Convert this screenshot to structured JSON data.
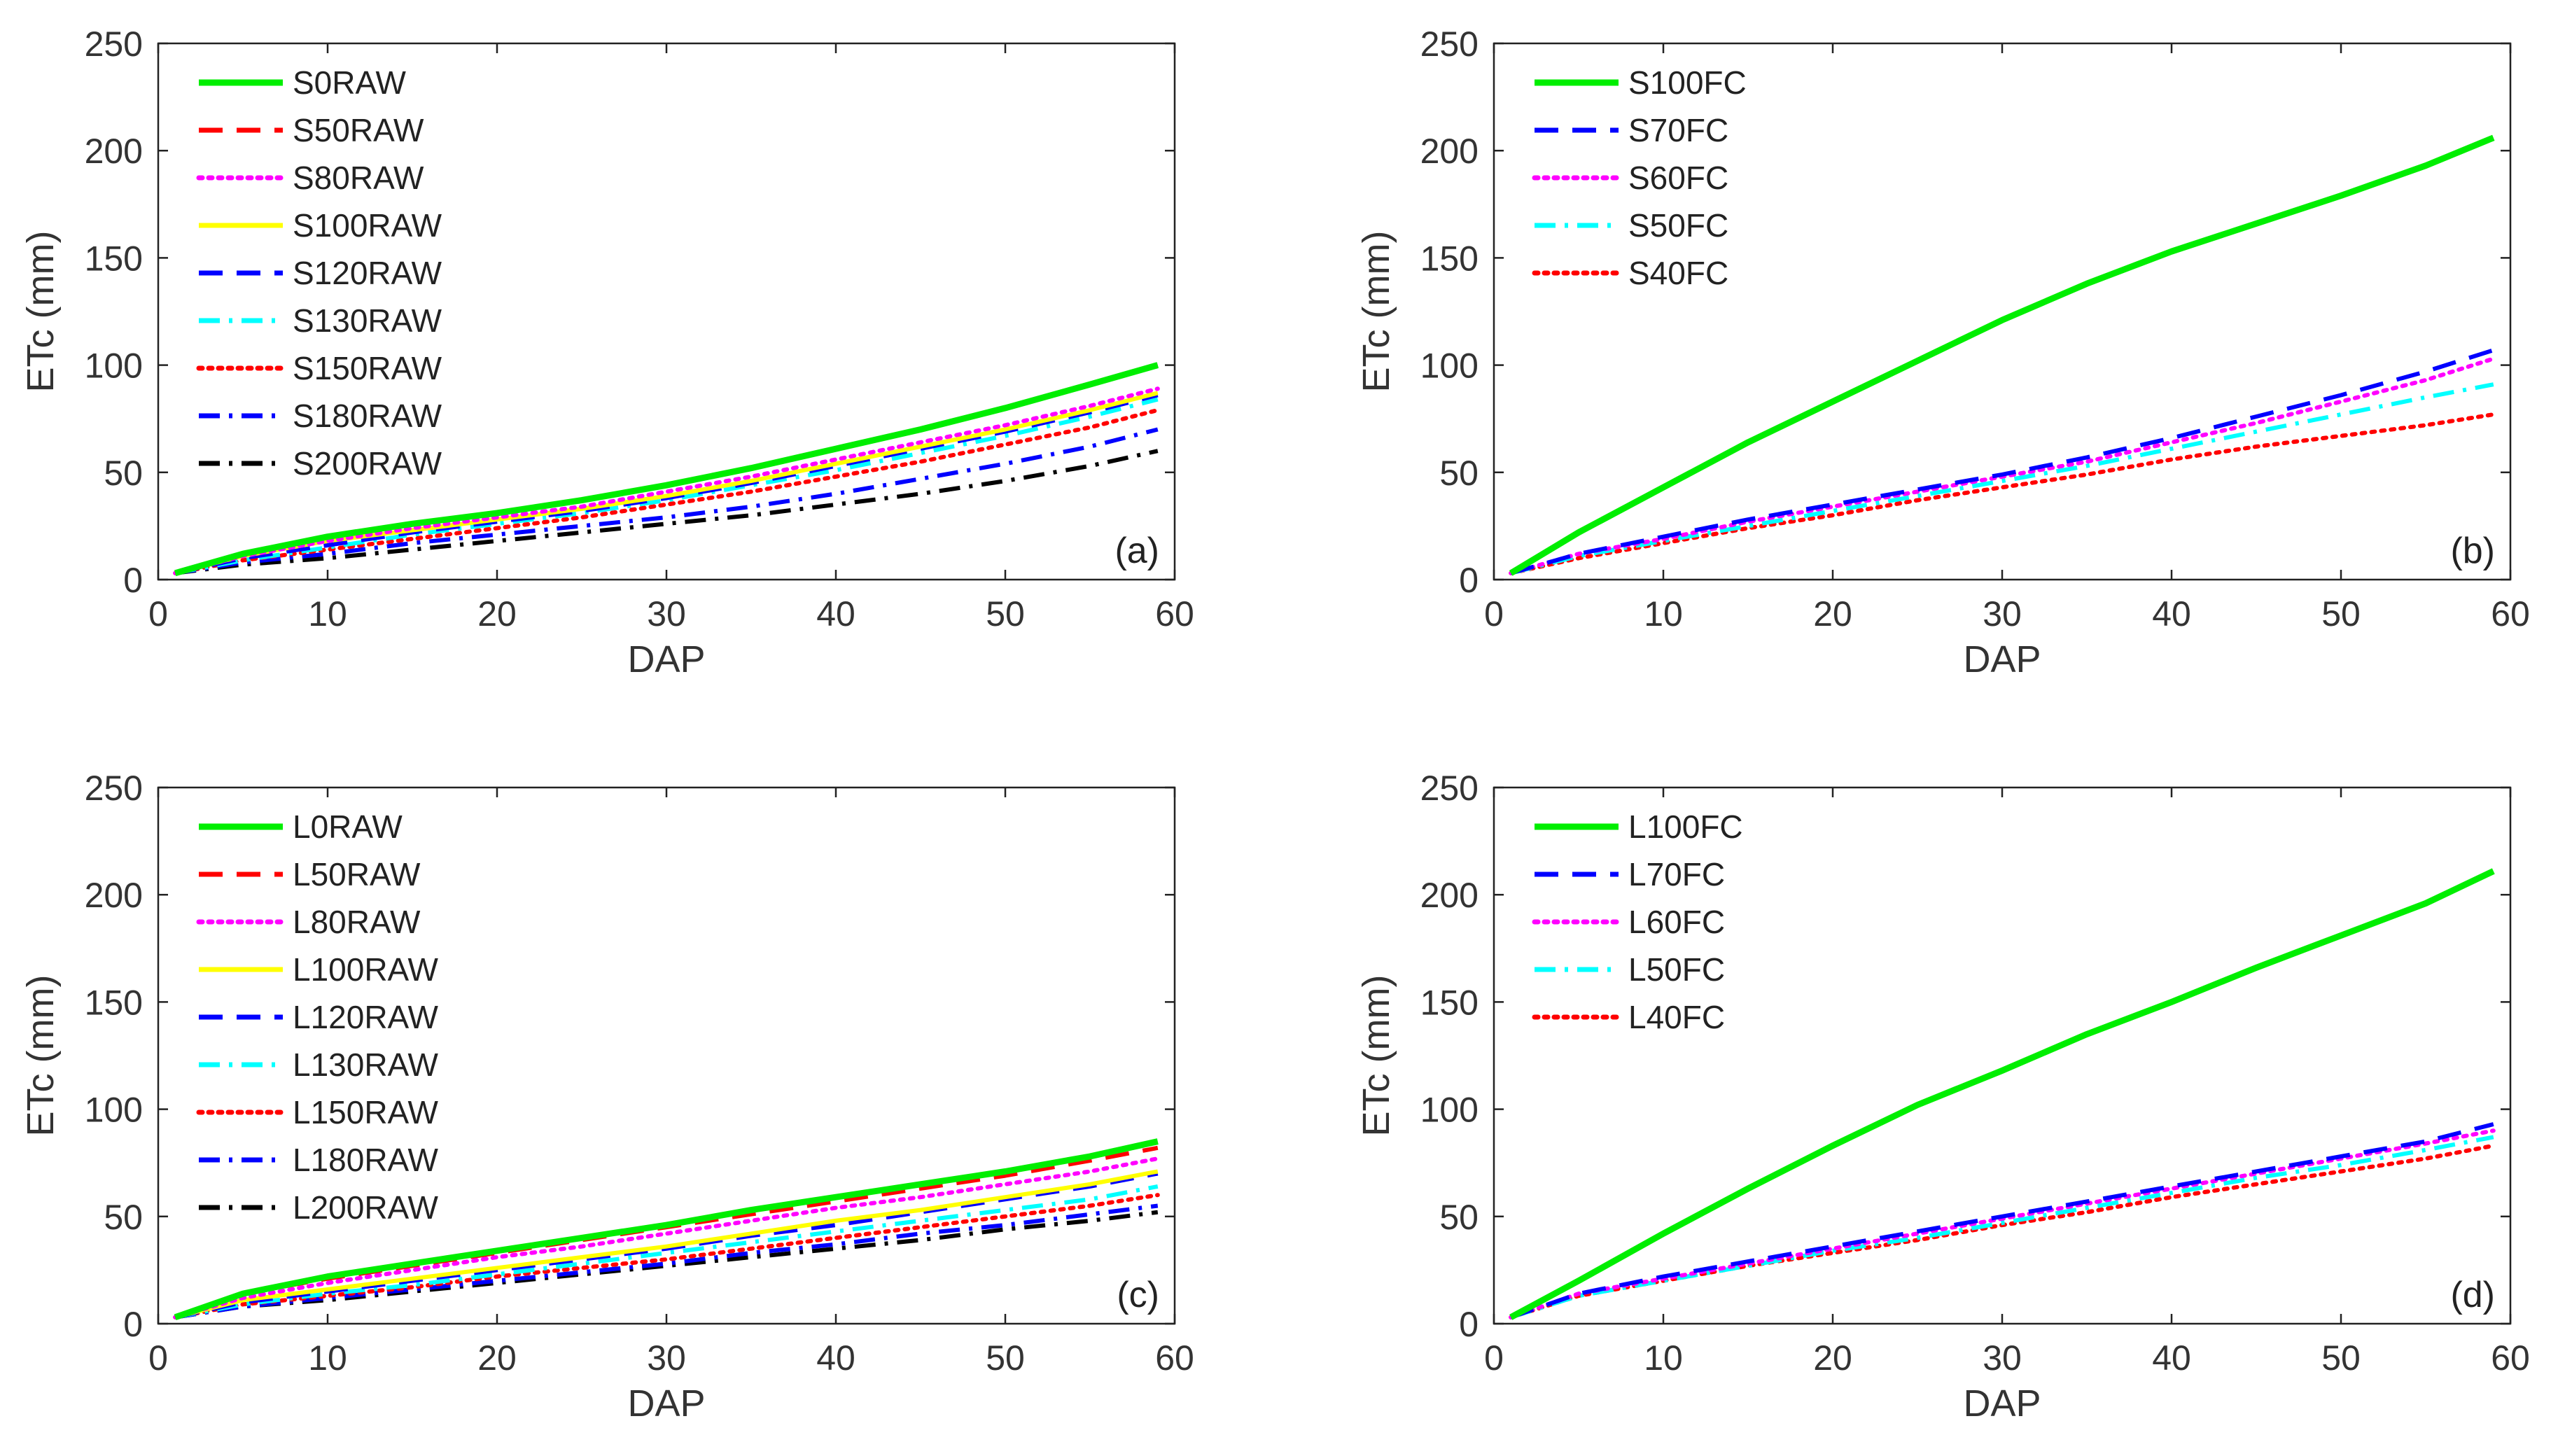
{
  "figure": {
    "panels": [
      "a",
      "b",
      "c",
      "d"
    ]
  },
  "chart_data": [
    {
      "id": "a",
      "type": "line",
      "panel_label": "(a)",
      "xlabel": "DAP",
      "ylabel": "ETc (mm)",
      "xlim": [
        0,
        60
      ],
      "ylim": [
        0,
        250
      ],
      "xticks": [
        "0",
        "10",
        "20",
        "30",
        "40",
        "50",
        "60"
      ],
      "yticks": [
        "0",
        "50",
        "100",
        "150",
        "200",
        "250"
      ],
      "legend_position": "top-left",
      "x": [
        1,
        5,
        10,
        15,
        20,
        25,
        30,
        35,
        40,
        45,
        50,
        55,
        59
      ],
      "series": [
        {
          "name": "S0RAW",
          "color": "#00ee00",
          "dash": "solid",
          "values": [
            3,
            12,
            20,
            26,
            31,
            37,
            44,
            52,
            61,
            70,
            80,
            91,
            100
          ]
        },
        {
          "name": "S50RAW",
          "color": "#ff0000",
          "dash": "dash",
          "values": [
            3,
            12,
            20,
            26,
            31,
            37,
            44,
            52,
            61,
            70,
            80,
            91,
            100
          ]
        },
        {
          "name": "S80RAW",
          "color": "#ff00ff",
          "dash": "dot",
          "values": [
            3,
            11,
            18,
            24,
            29,
            34,
            41,
            48,
            56,
            64,
            72,
            81,
            89
          ]
        },
        {
          "name": "S100RAW",
          "color": "#ffff00",
          "dash": "solid",
          "values": [
            3,
            11,
            18,
            23,
            28,
            33,
            39,
            46,
            54,
            62,
            70,
            79,
            87
          ]
        },
        {
          "name": "S120RAW",
          "color": "#0000ff",
          "dash": "dash",
          "values": [
            3,
            10,
            16,
            22,
            27,
            32,
            38,
            45,
            53,
            61,
            69,
            78,
            86
          ]
        },
        {
          "name": "S130RAW",
          "color": "#00ffff",
          "dash": "dashdot",
          "values": [
            3,
            9,
            15,
            21,
            26,
            31,
            37,
            44,
            51,
            59,
            67,
            76,
            84
          ]
        },
        {
          "name": "S150RAW",
          "color": "#ff0000",
          "dash": "dot",
          "values": [
            3,
            9,
            14,
            19,
            24,
            29,
            35,
            41,
            48,
            55,
            63,
            71,
            79
          ]
        },
        {
          "name": "S180RAW",
          "color": "#0000ff",
          "dash": "dashdot",
          "values": [
            3,
            8,
            12,
            17,
            21,
            25,
            29,
            34,
            40,
            47,
            54,
            62,
            70
          ]
        },
        {
          "name": "S200RAW",
          "color": "#000000",
          "dash": "dashdot",
          "values": [
            3,
            7,
            10,
            14,
            18,
            22,
            26,
            30,
            35,
            40,
            46,
            53,
            60
          ]
        }
      ]
    },
    {
      "id": "b",
      "type": "line",
      "panel_label": "(b)",
      "xlabel": "DAP",
      "ylabel": "ETc (mm)",
      "xlim": [
        0,
        60
      ],
      "ylim": [
        0,
        250
      ],
      "xticks": [
        "0",
        "10",
        "20",
        "30",
        "40",
        "50",
        "60"
      ],
      "yticks": [
        "0",
        "50",
        "100",
        "150",
        "200",
        "250"
      ],
      "legend_position": "top-left",
      "x": [
        1,
        5,
        10,
        15,
        20,
        25,
        30,
        35,
        40,
        45,
        50,
        55,
        59
      ],
      "series": [
        {
          "name": "S100FC",
          "color": "#00ee00",
          "dash": "solid",
          "values": [
            3,
            22,
            43,
            64,
            83,
            102,
            121,
            138,
            153,
            166,
            179,
            193,
            206
          ]
        },
        {
          "name": "S70FC",
          "color": "#0000ff",
          "dash": "dash",
          "values": [
            3,
            12,
            20,
            28,
            35,
            42,
            49,
            57,
            66,
            76,
            86,
            97,
            107
          ]
        },
        {
          "name": "S60FC",
          "color": "#ff00ff",
          "dash": "dot",
          "values": [
            3,
            12,
            19,
            27,
            34,
            41,
            48,
            55,
            64,
            73,
            83,
            93,
            103
          ]
        },
        {
          "name": "S50FC",
          "color": "#00ffff",
          "dash": "dashdot",
          "values": [
            3,
            11,
            18,
            25,
            32,
            39,
            46,
            53,
            61,
            69,
            77,
            85,
            91
          ]
        },
        {
          "name": "S40FC",
          "color": "#ff0000",
          "dash": "dot",
          "values": [
            3,
            10,
            17,
            24,
            30,
            37,
            43,
            49,
            56,
            62,
            67,
            72,
            77
          ]
        }
      ]
    },
    {
      "id": "c",
      "type": "line",
      "panel_label": "(c)",
      "xlabel": "DAP",
      "ylabel": "ETc (mm)",
      "xlim": [
        0,
        60
      ],
      "ylim": [
        0,
        250
      ],
      "xticks": [
        "0",
        "10",
        "20",
        "30",
        "40",
        "50",
        "60"
      ],
      "yticks": [
        "0",
        "50",
        "100",
        "150",
        "200",
        "250"
      ],
      "legend_position": "top-left",
      "x": [
        1,
        5,
        10,
        15,
        20,
        25,
        30,
        35,
        40,
        45,
        50,
        55,
        59
      ],
      "series": [
        {
          "name": "L0RAW",
          "color": "#00ee00",
          "dash": "solid",
          "values": [
            3,
            14,
            22,
            28,
            34,
            40,
            46,
            53,
            59,
            65,
            71,
            78,
            85
          ]
        },
        {
          "name": "L50RAW",
          "color": "#ff0000",
          "dash": "dash",
          "values": [
            3,
            14,
            21,
            27,
            33,
            39,
            45,
            51,
            57,
            63,
            69,
            76,
            82
          ]
        },
        {
          "name": "L80RAW",
          "color": "#ff00ff",
          "dash": "dot",
          "values": [
            3,
            12,
            19,
            25,
            31,
            36,
            42,
            48,
            54,
            59,
            65,
            71,
            77
          ]
        },
        {
          "name": "L100RAW",
          "color": "#ffff00",
          "dash": "solid",
          "values": [
            3,
            11,
            16,
            21,
            26,
            31,
            36,
            42,
            48,
            53,
            59,
            65,
            71
          ]
        },
        {
          "name": "L120RAW",
          "color": "#0000ff",
          "dash": "dash",
          "values": [
            3,
            10,
            15,
            20,
            25,
            30,
            35,
            41,
            46,
            52,
            58,
            64,
            70
          ]
        },
        {
          "name": "L130RAW",
          "color": "#00ffff",
          "dash": "dashdot",
          "values": [
            3,
            9,
            14,
            18,
            23,
            28,
            33,
            38,
            43,
            48,
            53,
            58,
            64
          ]
        },
        {
          "name": "L150RAW",
          "color": "#ff0000",
          "dash": "dot",
          "values": [
            3,
            9,
            13,
            17,
            22,
            26,
            30,
            35,
            40,
            45,
            50,
            55,
            60
          ]
        },
        {
          "name": "L180RAW",
          "color": "#0000ff",
          "dash": "dashdot",
          "values": [
            3,
            8,
            12,
            16,
            20,
            24,
            28,
            33,
            37,
            42,
            46,
            51,
            55
          ]
        },
        {
          "name": "L200RAW",
          "color": "#000000",
          "dash": "dashdot",
          "values": [
            3,
            8,
            11,
            15,
            19,
            23,
            27,
            31,
            35,
            39,
            44,
            48,
            52
          ]
        }
      ]
    },
    {
      "id": "d",
      "type": "line",
      "panel_label": "(d)",
      "xlabel": "DAP",
      "ylabel": "ETc (mm)",
      "xlim": [
        0,
        60
      ],
      "ylim": [
        0,
        250
      ],
      "xticks": [
        "0",
        "10",
        "20",
        "30",
        "40",
        "50",
        "60"
      ],
      "yticks": [
        "0",
        "50",
        "100",
        "150",
        "200",
        "250"
      ],
      "legend_position": "top-left",
      "x": [
        1,
        5,
        10,
        15,
        20,
        25,
        30,
        35,
        40,
        45,
        50,
        55,
        59
      ],
      "series": [
        {
          "name": "L100FC",
          "color": "#00ee00",
          "dash": "solid",
          "values": [
            3,
            20,
            42,
            63,
            83,
            102,
            118,
            135,
            150,
            166,
            181,
            196,
            211
          ]
        },
        {
          "name": "L70FC",
          "color": "#0000ff",
          "dash": "dash",
          "values": [
            3,
            14,
            22,
            29,
            36,
            43,
            50,
            57,
            64,
            71,
            78,
            85,
            93
          ]
        },
        {
          "name": "L60FC",
          "color": "#ff00ff",
          "dash": "dot",
          "values": [
            3,
            14,
            21,
            28,
            35,
            42,
            49,
            56,
            63,
            70,
            77,
            84,
            90
          ]
        },
        {
          "name": "L50FC",
          "color": "#00ffff",
          "dash": "dashdot",
          "values": [
            3,
            13,
            20,
            27,
            34,
            40,
            47,
            54,
            61,
            68,
            74,
            81,
            87
          ]
        },
        {
          "name": "L40FC",
          "color": "#ff0000",
          "dash": "dot",
          "values": [
            3,
            13,
            20,
            27,
            33,
            39,
            46,
            52,
            59,
            65,
            71,
            77,
            83
          ]
        }
      ]
    }
  ]
}
